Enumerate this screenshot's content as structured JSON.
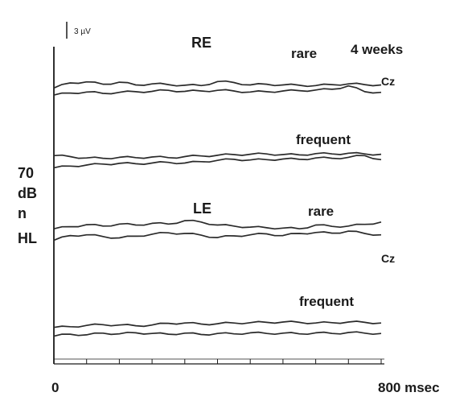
{
  "chart_data": {
    "type": "line",
    "title": "",
    "time_label": "4 weeks",
    "stimulus_level": [
      "70",
      "dB",
      "n",
      "HL"
    ],
    "scale_bar_label": "3 µV",
    "x_axis": {
      "start_label": "0",
      "end_label": "800 msec",
      "range_ms": [
        0,
        800
      ],
      "tick_step_ms": 80
    },
    "grid": false,
    "panels": [
      {
        "ear": "RE",
        "blocks": [
          {
            "condition": "rare",
            "electrode": "Cz",
            "series": [
              {
                "x": [
                  0,
                  40,
                  80,
                  120,
                  160,
                  200,
                  240,
                  280,
                  320,
                  360,
                  400,
                  440,
                  480,
                  520,
                  560,
                  600,
                  640,
                  680,
                  720,
                  760,
                  800
                ],
                "y": [
                  -0.3,
                  1.2,
                  1.5,
                  0.8,
                  1.4,
                  0.6,
                  0.9,
                  0.7,
                  0.5,
                  0.4,
                  1.6,
                  1.3,
                  0.6,
                  0.8,
                  0.6,
                  0.5,
                  0.4,
                  0.7,
                  0.9,
                  0.7,
                  0.6
                ]
              },
              {
                "x": [
                  0,
                  40,
                  80,
                  120,
                  160,
                  200,
                  240,
                  280,
                  320,
                  360,
                  400,
                  440,
                  480,
                  520,
                  560,
                  600,
                  640,
                  680,
                  720,
                  760,
                  800
                ],
                "y": [
                  -2.4,
                  -1.8,
                  -1.5,
                  -1.9,
                  -1.6,
                  -1.4,
                  -1.3,
                  -1.0,
                  -1.3,
                  -1.2,
                  -1.0,
                  -1.2,
                  -1.5,
                  -1.4,
                  -1.2,
                  -1.1,
                  -0.9,
                  -0.7,
                  0.3,
                  -1.4,
                  -1.6
                ]
              }
            ]
          },
          {
            "condition": "frequent",
            "electrode": "",
            "series": [
              {
                "x": [
                  0,
                  40,
                  80,
                  120,
                  160,
                  200,
                  240,
                  280,
                  320,
                  360,
                  400,
                  440,
                  480,
                  520,
                  560,
                  600,
                  640,
                  680,
                  720,
                  760,
                  800
                ],
                "y": [
                  1.6,
                  1.3,
                  0.9,
                  0.8,
                  1.1,
                  1.0,
                  1.2,
                  1.0,
                  1.3,
                  1.5,
                  1.7,
                  1.9,
                  2.0,
                  2.1,
                  1.9,
                  1.8,
                  2.2,
                  2.1,
                  2.3,
                  2.1,
                  2.0
                ]
              },
              {
                "x": [
                  0,
                  40,
                  80,
                  120,
                  160,
                  200,
                  240,
                  280,
                  320,
                  360,
                  400,
                  440,
                  480,
                  520,
                  560,
                  600,
                  640,
                  680,
                  720,
                  760,
                  800
                ],
                "y": [
                  -2.0,
                  -1.5,
                  -1.2,
                  -0.9,
                  -0.7,
                  -0.8,
                  -0.6,
                  -0.4,
                  -0.6,
                  -0.2,
                  0.2,
                  0.5,
                  0.3,
                  0.4,
                  0.6,
                  0.5,
                  0.9,
                  0.8,
                  1.1,
                  1.6,
                  0.4
                ]
              }
            ]
          }
        ]
      },
      {
        "ear": "LE",
        "blocks": [
          {
            "condition": "rare",
            "electrode": "Cz",
            "series": [
              {
                "x": [
                  0,
                  40,
                  80,
                  120,
                  160,
                  200,
                  240,
                  280,
                  320,
                  360,
                  400,
                  440,
                  480,
                  520,
                  560,
                  600,
                  640,
                  680,
                  720,
                  760,
                  800
                ],
                "y": [
                  0.2,
                  0.8,
                  1.4,
                  1.0,
                  1.6,
                  1.3,
                  1.8,
                  1.6,
                  2.6,
                  2.2,
                  1.3,
                  1.0,
                  0.7,
                  0.5,
                  0.4,
                  0.2,
                  1.3,
                  0.9,
                  1.0,
                  1.5,
                  2.2
                ]
              },
              {
                "x": [
                  0,
                  40,
                  80,
                  120,
                  160,
                  200,
                  240,
                  280,
                  320,
                  360,
                  400,
                  440,
                  480,
                  520,
                  560,
                  600,
                  640,
                  680,
                  720,
                  760,
                  800
                ],
                "y": [
                  -3.2,
                  -1.8,
                  -1.6,
                  -2.1,
                  -2.5,
                  -2.0,
                  -1.4,
                  -1.0,
                  -1.2,
                  -1.7,
                  -2.4,
                  -1.9,
                  -1.6,
                  -1.3,
                  -1.8,
                  -1.2,
                  -0.9,
                  -1.1,
                  -0.5,
                  -1.2,
                  -1.6
                ]
              }
            ]
          },
          {
            "condition": "frequent",
            "electrode": "",
            "series": [
              {
                "x": [
                  0,
                  40,
                  80,
                  120,
                  160,
                  200,
                  240,
                  280,
                  320,
                  360,
                  400,
                  440,
                  480,
                  520,
                  560,
                  600,
                  640,
                  680,
                  720,
                  760,
                  800
                ],
                "y": [
                  -0.4,
                  -0.2,
                  0.2,
                  0.4,
                  0.3,
                  0.1,
                  0.3,
                  0.8,
                  0.9,
                  0.6,
                  0.7,
                  0.9,
                  1.0,
                  1.1,
                  1.2,
                  1.1,
                  0.9,
                  1.0,
                  1.2,
                  1.1,
                  0.9
                ]
              },
              {
                "x": [
                  0,
                  40,
                  80,
                  120,
                  160,
                  200,
                  240,
                  280,
                  320,
                  360,
                  400,
                  440,
                  480,
                  520,
                  560,
                  600,
                  640,
                  680,
                  720,
                  760,
                  800
                ],
                "y": [
                  -3.0,
                  -2.4,
                  -2.6,
                  -2.1,
                  -2.3,
                  -2.0,
                  -2.2,
                  -2.4,
                  -2.1,
                  -2.5,
                  -2.2,
                  -2.3,
                  -2.0,
                  -2.2,
                  -2.1,
                  -2.3,
                  -2.0,
                  -2.2,
                  -1.9,
                  -2.1,
                  -2.2
                ]
              }
            ]
          }
        ]
      }
    ]
  }
}
